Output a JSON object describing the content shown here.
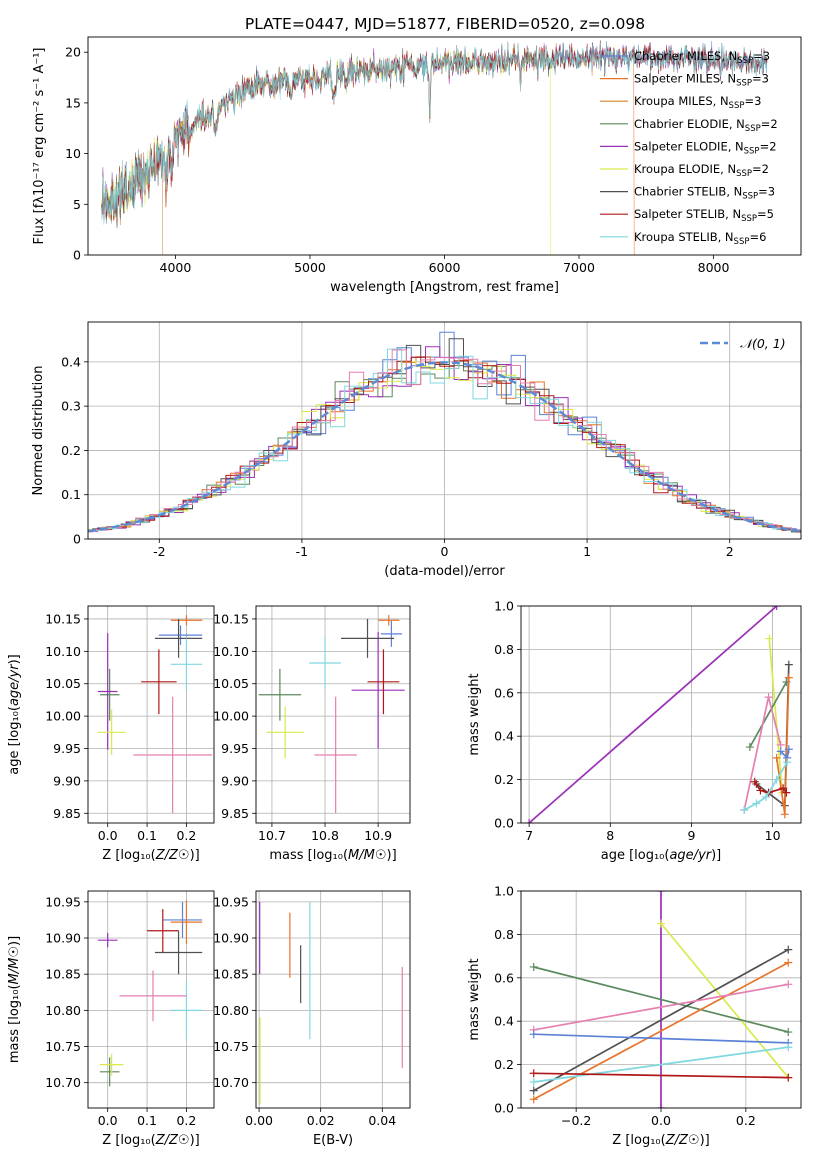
{
  "figure": {
    "title": "PLATE=0447, MJD=51877, FIBERID=0520, z=0.098"
  },
  "chart_data": [
    {
      "id": "spectrum",
      "type": "line",
      "xlabel": "wavelength [Angstrom, rest frame]",
      "ylabel": "Flux [fλ10⁻¹⁷ erg cm⁻² s⁻¹ A⁻¹]",
      "xlim": [
        3350,
        8650
      ],
      "ylim": [
        0,
        21.5
      ],
      "xticks": [
        4000,
        5000,
        6000,
        7000,
        8000
      ],
      "yticks": [
        0,
        5,
        10,
        15,
        20
      ],
      "grid": false,
      "legend_position": "top-right",
      "continuum": {
        "x": [
          3450,
          3600,
          3800,
          3900,
          4000,
          4100,
          4300,
          4500,
          4800,
          5000,
          5200,
          5500,
          5800,
          6000,
          6300,
          6600,
          6900,
          7200,
          7500,
          7800,
          8100,
          8400
        ],
        "y": [
          4.8,
          5.8,
          8.2,
          9.5,
          11.2,
          12.8,
          14.2,
          16.2,
          17.2,
          17.4,
          17.9,
          18.4,
          18.6,
          18.9,
          19.1,
          19.2,
          19.3,
          19.5,
          19.4,
          19.3,
          19.1,
          19.1
        ]
      },
      "series": [
        {
          "name": "Chabrier MILES, N",
          "sub": "SSP",
          "eq": "=3",
          "color": "#5b82d6",
          "end_drop": null
        },
        {
          "name": "Salpeter MILES, N",
          "sub": "SSP",
          "eq": "=3",
          "color": "#e8742a",
          "end_drop": 7410
        },
        {
          "name": "Kroupa MILES, N",
          "sub": "SSP",
          "eq": "=3",
          "color": "#d4842c",
          "end_drop": 3905
        },
        {
          "name": "Chabrier ELODIE, N",
          "sub": "SSP",
          "eq": "=2",
          "color": "#5b8a5e",
          "end_drop": null
        },
        {
          "name": "Salpeter ELODIE, N",
          "sub": "SSP",
          "eq": "=2",
          "color": "#9b30b8",
          "end_drop": null
        },
        {
          "name": "Kroupa ELODIE, N",
          "sub": "SSP",
          "eq": "=2",
          "color": "#d9ea4a",
          "end_drop": 6790
        },
        {
          "name": "Chabrier STELIB, N",
          "sub": "SSP",
          "eq": "=3",
          "color": "#505050",
          "end_drop": null
        },
        {
          "name": "Salpeter STELIB, N",
          "sub": "SSP",
          "eq": "=5",
          "color": "#b01818",
          "end_drop": null
        },
        {
          "name": "Kroupa STELIB, N",
          "sub": "SSP",
          "eq": "=6",
          "color": "#7fd8df",
          "end_drop": null
        }
      ]
    },
    {
      "id": "residuals",
      "type": "step-histogram",
      "xlabel": "(data-model)/error",
      "ylabel": "Normed distribution",
      "xlim": [
        -2.5,
        2.5
      ],
      "ylim": [
        0,
        0.49
      ],
      "xticks": [
        -2,
        -1,
        0,
        1,
        2
      ],
      "yticks": [
        0.0,
        0.1,
        0.2,
        0.3,
        0.4
      ],
      "grid": true,
      "bin_width": 0.1,
      "legend_position": "top-right",
      "reference_curve": {
        "name": "𝒩(0, 1)",
        "color": "#5b8bd6",
        "mu": 0,
        "sigma": 1
      },
      "histogram_colors": [
        "#5b82d6",
        "#e8742a",
        "#5b8a5e",
        "#9b30b8",
        "#d9ea4a",
        "#505050",
        "#b01818",
        "#7fd8df",
        "#e57fb0"
      ]
    },
    {
      "id": "age-vs-Z",
      "type": "errorbar",
      "xlabel": "Z [log₁₀(Z/Z☉)]",
      "ylabel": "age  [log₁₀(age/yr)]",
      "xlim": [
        -0.05,
        0.27
      ],
      "ylim": [
        9.835,
        10.17
      ],
      "xticks": [
        0.0,
        0.1,
        0.2
      ],
      "xtick_labels": [
        "0.0",
        "0.1",
        "0.2"
      ],
      "yticks": [
        9.85,
        9.9,
        9.95,
        10.0,
        10.05,
        10.1,
        10.15
      ],
      "ytick_labels": [
        "9.85",
        "9.90",
        "9.95",
        "10.00",
        "10.05",
        "10.10",
        "10.15"
      ],
      "grid": true,
      "points": [
        {
          "color": "#5b82d6",
          "x": 0.185,
          "xerr": 0.055,
          "y": 10.125,
          "yerr": 0.015
        },
        {
          "color": "#e8742a",
          "x": 0.2,
          "xerr": 0.04,
          "y": 10.148,
          "yerr": 0.008
        },
        {
          "color": "#5b8a5e",
          "x": 0.005,
          "xerr": 0.025,
          "y": 10.033,
          "yerr": 0.04
        },
        {
          "color": "#9b30b8",
          "x": 0.0,
          "xerr": 0.025,
          "y": 10.038,
          "yerr": 0.09
        },
        {
          "color": "#d9ea4a",
          "x": 0.01,
          "xerr": 0.035,
          "y": 9.975,
          "yerr": 0.035
        },
        {
          "color": "#505050",
          "x": 0.18,
          "xerr": 0.06,
          "y": 10.12,
          "yerr": 0.03
        },
        {
          "color": "#b01818",
          "x": 0.13,
          "xerr": 0.045,
          "y": 10.053,
          "yerr": 0.05
        },
        {
          "color": "#7fd8df",
          "x": 0.2,
          "xerr": 0.04,
          "y": 10.08,
          "yerr": 0.04
        },
        {
          "color": "#e57fb0",
          "x": 0.165,
          "xerr": 0.1,
          "y": 9.94,
          "yerr": 0.09
        }
      ]
    },
    {
      "id": "age-vs-mass",
      "type": "errorbar",
      "xlabel": "mass [log₁₀(M/M☉)]",
      "ylabel": "",
      "xlim": [
        10.67,
        10.96
      ],
      "ylim": [
        9.835,
        10.17
      ],
      "xticks": [
        10.7,
        10.8,
        10.9
      ],
      "xtick_labels": [
        "10.7",
        "10.8",
        "10.9"
      ],
      "yticks": [
        9.85,
        9.9,
        9.95,
        10.0,
        10.05,
        10.1,
        10.15
      ],
      "ytick_labels": [
        "9.85",
        "9.90",
        "9.95",
        "10.00",
        "10.05",
        "10.10",
        "10.15"
      ],
      "grid": true,
      "points": [
        {
          "color": "#5b82d6",
          "x": 10.925,
          "xerr": 0.02,
          "y": 10.127,
          "yerr": 0.02
        },
        {
          "color": "#e8742a",
          "x": 10.92,
          "xerr": 0.02,
          "y": 10.148,
          "yerr": 0.008
        },
        {
          "color": "#5b8a5e",
          "x": 10.715,
          "xerr": 0.04,
          "y": 10.033,
          "yerr": 0.04
        },
        {
          "color": "#9b30b8",
          "x": 10.9,
          "xerr": 0.05,
          "y": 10.04,
          "yerr": 0.09
        },
        {
          "color": "#d9ea4a",
          "x": 10.725,
          "xerr": 0.035,
          "y": 9.975,
          "yerr": 0.04
        },
        {
          "color": "#505050",
          "x": 10.88,
          "xerr": 0.05,
          "y": 10.12,
          "yerr": 0.03
        },
        {
          "color": "#b01818",
          "x": 10.91,
          "xerr": 0.03,
          "y": 10.053,
          "yerr": 0.05
        },
        {
          "color": "#7fd8df",
          "x": 10.8,
          "xerr": 0.03,
          "y": 10.082,
          "yerr": 0.04
        },
        {
          "color": "#e57fb0",
          "x": 10.82,
          "xerr": 0.04,
          "y": 9.94,
          "yerr": 0.09
        }
      ]
    },
    {
      "id": "weight-vs-age",
      "type": "line",
      "xlabel": "age  [log₁₀(age/yr)]",
      "ylabel": "mass weight",
      "xlim": [
        6.9,
        10.35
      ],
      "ylim": [
        0,
        1.0
      ],
      "xticks": [
        7,
        8,
        9,
        10
      ],
      "xtick_labels": [
        "7",
        "8",
        "9",
        "10"
      ],
      "yticks": [
        0.0,
        0.2,
        0.4,
        0.6,
        0.8,
        1.0
      ],
      "ytick_labels": [
        "0.0",
        "0.2",
        "0.4",
        "0.6",
        "0.8",
        "1.0"
      ],
      "grid": true,
      "series": [
        {
          "color": "#9b30b8",
          "x": [
            7.0,
            10.05
          ],
          "y": [
            0.0,
            1.0
          ]
        },
        {
          "color": "#d9ea4a",
          "x": [
            9.96,
            10.12
          ],
          "y": [
            0.85,
            0.14
          ]
        },
        {
          "color": "#5b8a5e",
          "x": [
            9.72,
            10.17
          ],
          "y": [
            0.35,
            0.65
          ]
        },
        {
          "color": "#e57fb0",
          "x": [
            9.65,
            9.95,
            10.1
          ],
          "y": [
            0.06,
            0.58,
            0.36
          ]
        },
        {
          "color": "#505050",
          "x": [
            9.8,
            10.15,
            10.2
          ],
          "y": [
            0.18,
            0.08,
            0.73
          ]
        },
        {
          "color": "#e8742a",
          "x": [
            10.05,
            10.15,
            10.2
          ],
          "y": [
            0.3,
            0.04,
            0.67
          ]
        },
        {
          "color": "#b01818",
          "x": [
            9.78,
            9.85,
            9.95,
            10.13,
            10.17
          ],
          "y": [
            0.19,
            0.15,
            0.14,
            0.16,
            0.14
          ]
        },
        {
          "color": "#5b82d6",
          "x": [
            10.1,
            10.18,
            10.2
          ],
          "y": [
            0.33,
            0.3,
            0.34
          ]
        },
        {
          "color": "#7fd8df",
          "x": [
            9.65,
            9.8,
            9.92,
            10.05,
            10.18
          ],
          "y": [
            0.06,
            0.09,
            0.12,
            0.2,
            0.28
          ]
        }
      ]
    },
    {
      "id": "mass-vs-Z",
      "type": "errorbar",
      "xlabel": "Z [log₁₀(Z/Z☉)]",
      "ylabel": "mass [log₁₀(M/M☉)]",
      "xlim": [
        -0.05,
        0.27
      ],
      "ylim": [
        10.665,
        10.965
      ],
      "xticks": [
        0.0,
        0.1,
        0.2
      ],
      "xtick_labels": [
        "0.0",
        "0.1",
        "0.2"
      ],
      "yticks": [
        10.7,
        10.75,
        10.8,
        10.85,
        10.9,
        10.95
      ],
      "ytick_labels": [
        "10.70",
        "10.75",
        "10.80",
        "10.85",
        "10.90",
        "10.95"
      ],
      "grid": true,
      "points": [
        {
          "color": "#5b82d6",
          "x": 0.19,
          "xerr": 0.05,
          "y": 10.925,
          "yerr": 0.025
        },
        {
          "color": "#e8742a",
          "x": 0.2,
          "xerr": 0.04,
          "y": 10.922,
          "yerr": 0.03
        },
        {
          "color": "#5b8a5e",
          "x": 0.005,
          "xerr": 0.025,
          "y": 10.715,
          "yerr": 0.02
        },
        {
          "color": "#9b30b8",
          "x": 0.0,
          "xerr": 0.025,
          "y": 10.897,
          "yerr": 0.01
        },
        {
          "color": "#d9ea4a",
          "x": 0.01,
          "xerr": 0.03,
          "y": 10.725,
          "yerr": 0.015
        },
        {
          "color": "#505050",
          "x": 0.18,
          "xerr": 0.06,
          "y": 10.88,
          "yerr": 0.03
        },
        {
          "color": "#b01818",
          "x": 0.14,
          "xerr": 0.04,
          "y": 10.91,
          "yerr": 0.03
        },
        {
          "color": "#7fd8df",
          "x": 0.2,
          "xerr": 0.04,
          "y": 10.8,
          "yerr": 0.04
        },
        {
          "color": "#e57fb0",
          "x": 0.115,
          "xerr": 0.085,
          "y": 10.82,
          "yerr": 0.035
        }
      ]
    },
    {
      "id": "mass-vs-EBV",
      "type": "errorbar",
      "xlabel": "E(B-V)",
      "ylabel": "",
      "xlim": [
        -0.001,
        0.049
      ],
      "ylim": [
        10.665,
        10.965
      ],
      "xticks": [
        0.0,
        0.02,
        0.04
      ],
      "xtick_labels": [
        "0.00",
        "0.02",
        "0.04"
      ],
      "yticks": [
        10.7,
        10.75,
        10.8,
        10.85,
        10.9,
        10.95
      ],
      "ytick_labels": [
        "10.70",
        "10.75",
        "10.80",
        "10.85",
        "10.90",
        "10.95"
      ],
      "grid": true,
      "points": [
        {
          "color": "#9b30b8",
          "x": 0.0002,
          "xerr": 0,
          "y": 10.9,
          "yerr": 0.05
        },
        {
          "color": "#d9ea4a",
          "x": 0.0003,
          "xerr": 0,
          "y": 10.73,
          "yerr": 0.06
        },
        {
          "color": "#e8742a",
          "x": 0.01,
          "xerr": 0,
          "y": 10.89,
          "yerr": 0.045
        },
        {
          "color": "#505050",
          "x": 0.0135,
          "xerr": 0,
          "y": 10.85,
          "yerr": 0.04
        },
        {
          "color": "#7fd8df",
          "x": 0.0165,
          "xerr": 0,
          "y": 10.855,
          "yerr": 0.095
        },
        {
          "color": "#e57fb0",
          "x": 0.0465,
          "xerr": 0,
          "y": 10.79,
          "yerr": 0.07
        }
      ]
    },
    {
      "id": "weight-vs-Z",
      "type": "line",
      "xlabel": "Z [log₁₀(Z/Z☉)]",
      "ylabel": "mass weight",
      "xlim": [
        -0.33,
        0.33
      ],
      "ylim": [
        0,
        1.0
      ],
      "xticks": [
        -0.2,
        0.0,
        0.2
      ],
      "xtick_labels": [
        "−0.2",
        "0.0",
        "0.2"
      ],
      "yticks": [
        0.0,
        0.2,
        0.4,
        0.6,
        0.8,
        1.0
      ],
      "ytick_labels": [
        "0.0",
        "0.2",
        "0.4",
        "0.6",
        "0.8",
        "1.0"
      ],
      "grid": true,
      "series": [
        {
          "color": "#9b30b8",
          "x": [
            0.0,
            0.0
          ],
          "y": [
            0.0,
            1.0
          ]
        },
        {
          "color": "#d9ea4a",
          "x": [
            0.0,
            0.3
          ],
          "y": [
            0.85,
            0.14
          ]
        },
        {
          "color": "#5b8a5e",
          "x": [
            -0.3,
            0.3
          ],
          "y": [
            0.65,
            0.35
          ]
        },
        {
          "color": "#505050",
          "x": [
            -0.3,
            0.3
          ],
          "y": [
            0.08,
            0.73
          ]
        },
        {
          "color": "#e8742a",
          "x": [
            -0.3,
            0.3
          ],
          "y": [
            0.04,
            0.67
          ]
        },
        {
          "color": "#e57fb0",
          "x": [
            -0.3,
            0.3
          ],
          "y": [
            0.36,
            0.57
          ]
        },
        {
          "color": "#5b82d6",
          "x": [
            -0.3,
            0.3
          ],
          "y": [
            0.34,
            0.3
          ]
        },
        {
          "color": "#7fd8df",
          "x": [
            -0.3,
            0.3
          ],
          "y": [
            0.12,
            0.28
          ]
        },
        {
          "color": "#b01818",
          "x": [
            -0.3,
            0.3
          ],
          "y": [
            0.16,
            0.14
          ]
        }
      ]
    }
  ]
}
